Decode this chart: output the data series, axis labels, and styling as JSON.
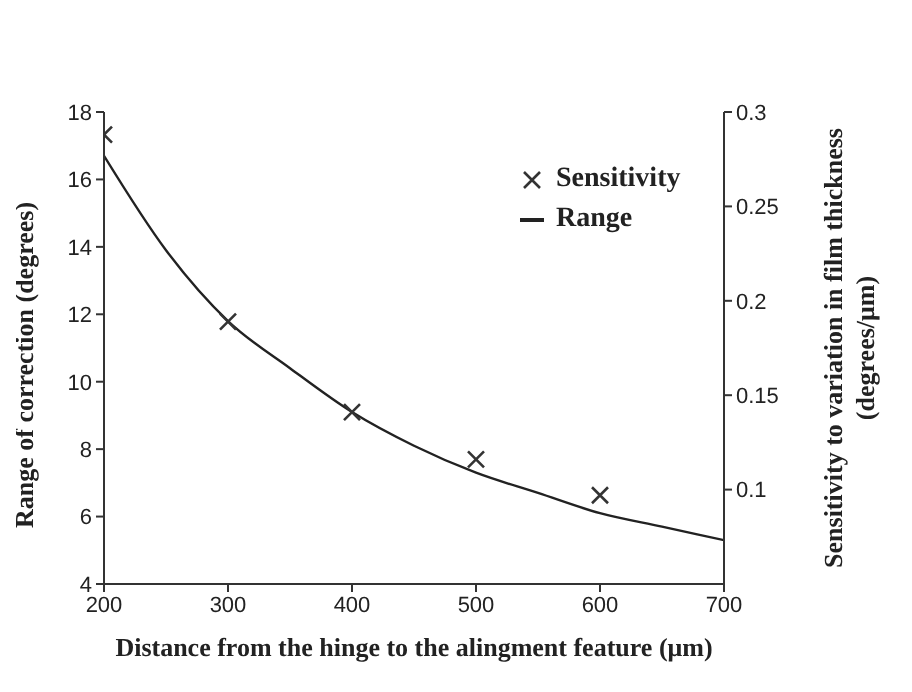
{
  "chart_data": {
    "type": "line",
    "xlabel": "Distance from the hinge to the alingment feature (μm)",
    "ylabel": "Range of correction (degrees)",
    "y2label": "Sensitivity to variation in film thickness (degrees/μm)",
    "xlim": [
      200,
      700
    ],
    "xticks": [
      200,
      300,
      400,
      500,
      600,
      700
    ],
    "ylim": [
      4,
      18
    ],
    "yticks": [
      4,
      6,
      8,
      10,
      12,
      14,
      16,
      18
    ],
    "y2lim": [
      0.05,
      0.3
    ],
    "y2ticks": [
      0.1,
      0.15,
      0.2,
      0.25,
      0.3
    ],
    "legend": "top right",
    "grid": false,
    "series": [
      {
        "name": "Sensitivity",
        "type": "scatter",
        "axis": "y2",
        "marker": "cross",
        "color": "#333333",
        "x": [
          200,
          300,
          400,
          500,
          600
        ],
        "values": [
          0.288,
          0.189,
          0.141,
          0.116,
          0.097
        ]
      },
      {
        "name": "Range",
        "type": "line",
        "marker": "none",
        "line_style": "solid",
        "color": "#222222",
        "x": [
          200,
          250,
          300,
          350,
          400,
          450,
          500,
          550,
          600,
          650,
          700
        ],
        "values": [
          16.7,
          13.9,
          11.8,
          10.4,
          9.1,
          8.1,
          7.3,
          6.7,
          6.1,
          5.7,
          5.3
        ]
      }
    ]
  }
}
